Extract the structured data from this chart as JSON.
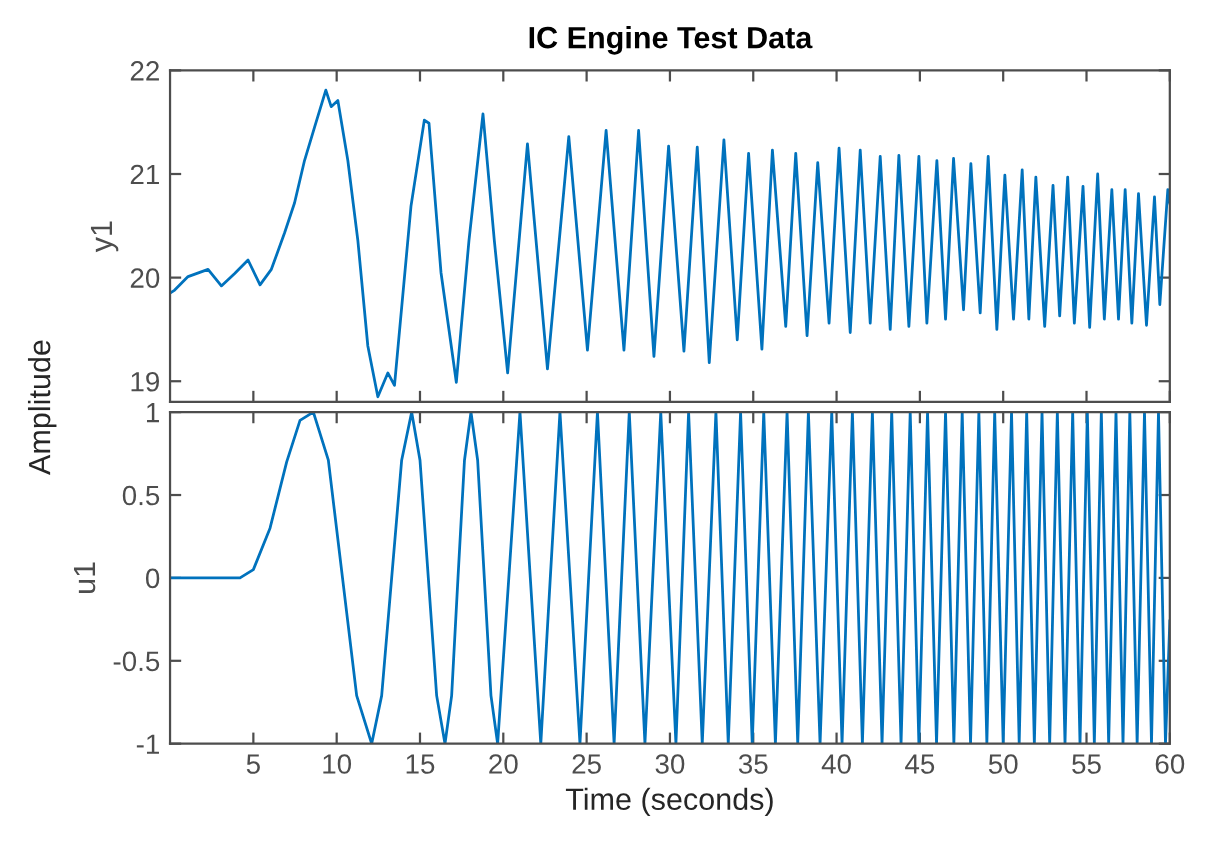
{
  "chart_data": [
    {
      "type": "line",
      "title": "IC Engine Test Data",
      "ylabel": "y1",
      "annotations": [
        "Amplitude"
      ],
      "xlim": [
        0,
        60
      ],
      "xticks": [
        5,
        10,
        15,
        20,
        25,
        30,
        35,
        40,
        45,
        50,
        55,
        60
      ],
      "ylim": [
        18.8,
        22
      ],
      "yticks": [
        19,
        20,
        21,
        22
      ],
      "tick_labels": "y",
      "grid": false,
      "series": [
        {
          "color": "#0072bd",
          "x": [
            0,
            0.28,
            1.08,
            2.28,
            3.08,
            3.88,
            4.68,
            5.4,
            6.08,
            6.87,
            7.47,
            8.07,
            8.67,
            9.35,
            9.67,
            10.07,
            10.67,
            11.27,
            11.87,
            12.47,
            13.07,
            13.47,
            14.46,
            15.26,
            15.54,
            16.26,
            17.18,
            17.94,
            18.78,
            19.46,
            20.26,
            21.45,
            22.65,
            23.93,
            25.05,
            26.17,
            27.24,
            28.12,
            29.04,
            29.92,
            30.84,
            31.64,
            32.36,
            33.24,
            34.04,
            34.72,
            35.52,
            36.15,
            36.95,
            37.55,
            38.23,
            38.87,
            39.55,
            40.15,
            40.82,
            41.42,
            42.02,
            42.62,
            43.22,
            43.74,
            44.34,
            44.94,
            45.42,
            46.02,
            46.54,
            47.02,
            47.62,
            48.06,
            48.62,
            49.1,
            49.62,
            50.1,
            50.62,
            51.14,
            51.54,
            51.96,
            52.49,
            52.99,
            53.39,
            53.87,
            54.27,
            54.79,
            55.19,
            55.67,
            56.07,
            56.52,
            56.92,
            57.32,
            57.72,
            58.12,
            58.6,
            59.08,
            59.4,
            59.88,
            60
          ],
          "values": [
            19.85,
            19.88,
            20.01,
            20.08,
            19.92,
            20.04,
            20.17,
            19.93,
            20.08,
            20.43,
            20.72,
            21.13,
            21.45,
            21.81,
            21.65,
            21.71,
            21.13,
            20.36,
            19.34,
            18.85,
            19.08,
            18.96,
            20.69,
            21.52,
            21.49,
            20.05,
            18.99,
            20.36,
            21.58,
            20.36,
            19.08,
            21.29,
            19.12,
            21.36,
            19.3,
            21.42,
            19.3,
            21.42,
            19.24,
            21.27,
            19.29,
            21.26,
            19.18,
            21.33,
            19.4,
            21.2,
            19.31,
            21.23,
            19.53,
            21.2,
            19.44,
            21.11,
            19.56,
            21.25,
            19.47,
            21.23,
            19.56,
            21.17,
            19.5,
            21.18,
            19.53,
            21.17,
            19.56,
            21.13,
            19.6,
            21.15,
            19.69,
            21.1,
            19.66,
            21.17,
            19.5,
            20.99,
            19.6,
            21.04,
            19.6,
            20.97,
            19.53,
            20.89,
            19.63,
            20.97,
            19.56,
            20.88,
            19.52,
            21.0,
            19.6,
            20.85,
            19.6,
            20.85,
            19.56,
            20.81,
            19.54,
            20.78,
            19.74,
            20.85,
            20.72
          ]
        }
      ]
    },
    {
      "type": "line",
      "ylabel": "u1",
      "xlabel": "Time (seconds)",
      "xlim": [
        0,
        60
      ],
      "xticks": [
        5,
        10,
        15,
        20,
        25,
        30,
        35,
        40,
        45,
        50,
        55,
        60
      ],
      "ylim": [
        -1,
        1
      ],
      "yticks": [
        -1,
        -0.5,
        0,
        0.5,
        1
      ],
      "grid": false,
      "series": [
        {
          "color": "#0072bd",
          "x": [
            0,
            4.2,
            5,
            6,
            7,
            7.8,
            8.6,
            9.5,
            10.35,
            11.2,
            12.1,
            12.7,
            13.3,
            13.9,
            14.5,
            15.0,
            15.5,
            16.0,
            16.5,
            16.9,
            17.28,
            17.67,
            18.06,
            18.46,
            18.86,
            19.26,
            19.66,
            20.33,
            21.0,
            21.62,
            22.25,
            22.82,
            23.4,
            24.0,
            24.6,
            25.12,
            25.65,
            26.15,
            26.65,
            27.1,
            27.56,
            28.03,
            28.5,
            28.97,
            29.45,
            29.9,
            30.36,
            31.12,
            31.94,
            32.76,
            33.5,
            34.24,
            34.94,
            35.63,
            36.33,
            37.03,
            37.67,
            38.31,
            39.01,
            39.71,
            40.33,
            40.95,
            41.55,
            42.15,
            42.73,
            43.31,
            43.87,
            44.42,
            44.94,
            45.46,
            46.0,
            46.54,
            47.04,
            47.54,
            48.04,
            48.54,
            49.02,
            49.49,
            50.0,
            50.5,
            50.96,
            51.41,
            51.87,
            52.33,
            52.79,
            53.25,
            53.71,
            54.17,
            54.61,
            55.05,
            55.47,
            55.89,
            56.33,
            56.77,
            57.19,
            57.6,
            58.04,
            58.48,
            58.9,
            59.32,
            59.74,
            60
          ],
          "values": [
            0,
            0,
            0.05,
            0.3,
            0.7,
            0.95,
            1,
            0.71,
            0,
            -0.71,
            -1,
            -0.71,
            0,
            0.71,
            1,
            0.71,
            0,
            -0.71,
            -1,
            -0.71,
            0,
            0.71,
            1,
            0.71,
            0,
            -0.71,
            -1,
            0,
            1,
            0,
            -1,
            0,
            1,
            0,
            -1,
            0,
            1,
            0,
            -1,
            0,
            1,
            0,
            -1,
            0,
            1,
            0,
            -1,
            1,
            -1,
            1,
            -1,
            1,
            -1,
            1,
            -1,
            1,
            -1,
            1,
            -1,
            1,
            -1,
            1,
            -1,
            1,
            -1,
            1,
            -1,
            1,
            -1,
            1,
            -1,
            1,
            -1,
            1,
            -1,
            1,
            -1,
            1,
            -1,
            1,
            -1,
            1,
            -1,
            1,
            -1,
            1,
            -1,
            1,
            -1,
            1,
            -1,
            1,
            -1,
            1,
            -1,
            1,
            -1,
            1,
            -1,
            1,
            -1,
            -0.26
          ]
        }
      ]
    }
  ]
}
